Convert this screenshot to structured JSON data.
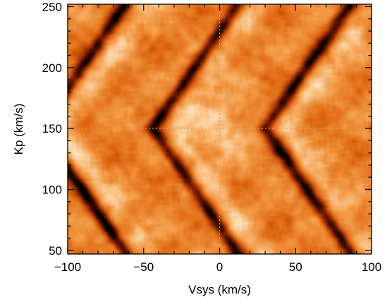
{
  "chart_data": {
    "type": "heatmap",
    "title": "",
    "xlabel": "Vsys (km/s)",
    "ylabel": "Kp (km/s)",
    "xlim": [
      -100,
      100
    ],
    "ylim": [
      47,
      252
    ],
    "xticks": [
      -100,
      -50,
      0,
      50,
      100
    ],
    "yticks": [
      50,
      100,
      150,
      200,
      250
    ],
    "xtick_labels": [
      "−100",
      "−50",
      "0",
      "50",
      "100"
    ],
    "ytick_labels": [
      "50",
      "100",
      "150",
      "200",
      "250"
    ],
    "colormap": [
      "#000000",
      "#5a1400",
      "#b33800",
      "#e06a14",
      "#f29a45",
      "#fbd7a8",
      "#ffffff"
    ],
    "peak": {
      "vsys": 0,
      "kp": 150
    },
    "crosshair": {
      "vsys": 0,
      "kp": 150,
      "color": "#e0a060",
      "style": "dotted"
    },
    "features": [
      {
        "name": "dark V-shaped trail",
        "vsys_at_kp150": -44,
        "slope_per_kms": 0.55
      },
      {
        "name": "dark V-shaped trail",
        "vsys_at_kp150": 30,
        "slope_per_kms": 0.55
      },
      {
        "name": "dark V-shaped trail",
        "vsys_at_kp150": 104,
        "slope_per_kms": 0.55
      },
      {
        "name": "dark V-shaped trail",
        "vsys_at_kp150": -118,
        "slope_per_kms": 0.55
      }
    ]
  }
}
